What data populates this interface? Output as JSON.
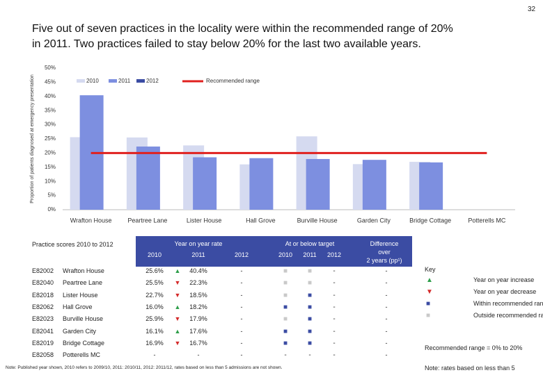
{
  "page_number": "32",
  "title": [
    "Five out of seven practices in the locality were within the recommended range of 20%",
    "in 2011.  Two practices failed to stay below 20% for the last two available years."
  ],
  "chart_data": {
    "type": "bar",
    "ylabel": "Proportion of patients diagnosed at emergency presentation",
    "categories": [
      "Wrafton House",
      "Peartree Lane",
      "Lister House",
      "Hall Grove",
      "Burville House",
      "Garden City",
      "Bridge Cottage",
      "Potterells MC"
    ],
    "series": [
      {
        "name": "2010",
        "color": "#d5daf0",
        "values": [
          25.6,
          25.5,
          22.7,
          16.0,
          25.9,
          16.1,
          16.9,
          null
        ]
      },
      {
        "name": "2011",
        "color": "#7d8fe0",
        "values": [
          40.4,
          22.3,
          18.5,
          18.2,
          17.9,
          17.6,
          16.7,
          null
        ]
      },
      {
        "name": "2012",
        "color": "#3b4ca3",
        "values": [
          null,
          null,
          null,
          null,
          null,
          null,
          null,
          null
        ]
      }
    ],
    "reference_line": {
      "name": "Recommended range",
      "value": 20,
      "color": "#e0201e"
    },
    "ylim": [
      0,
      50
    ],
    "yticks": [
      {
        "value": 0,
        "label": "0%"
      },
      {
        "value": 5,
        "label": "5%"
      },
      {
        "value": 10,
        "label": "10%"
      },
      {
        "value": 15,
        "label": "15%"
      },
      {
        "value": 20,
        "label": "20%"
      },
      {
        "value": 25,
        "label": "25%"
      },
      {
        "value": 30,
        "label": "30%"
      },
      {
        "value": 35,
        "label": "35%"
      },
      {
        "value": 40,
        "label": "40%"
      },
      {
        "value": 45,
        "label": "45%"
      },
      {
        "value": 50,
        "label": "50%"
      }
    ]
  },
  "table": {
    "caption": "Practice scores 2010 to 2012",
    "group_headers": [
      "Year on year rate",
      "At or below target"
    ],
    "rate_years": [
      "2010",
      "2011",
      "2012"
    ],
    "target_years": [
      "2010",
      "2011",
      "2012"
    ],
    "difference_header": [
      "Difference",
      "over",
      "2 years (pp¹)"
    ],
    "rows": [
      {
        "code": "E82002",
        "name": "Wrafton House",
        "y2010": "25.6%",
        "trend": {
          "text": "▲",
          "color": "#2e9e4a"
        },
        "y2011": "40.4%",
        "y2012": "-",
        "target": [
          {
            "text": "■",
            "color": "#c9c9c9"
          },
          {
            "text": "■",
            "color": "#c9c9c9"
          },
          {
            "text": "-",
            "color": "#333333"
          }
        ],
        "difference": "-"
      },
      {
        "code": "E82040",
        "name": "Peartree Lane",
        "y2010": "25.5%",
        "trend": {
          "text": "▼",
          "color": "#d42a2a"
        },
        "y2011": "22.3%",
        "y2012": "-",
        "target": [
          {
            "text": "■",
            "color": "#c9c9c9"
          },
          {
            "text": "■",
            "color": "#c9c9c9"
          },
          {
            "text": "-",
            "color": "#333333"
          }
        ],
        "difference": "-"
      },
      {
        "code": "E82018",
        "name": "Lister House",
        "y2010": "22.7%",
        "trend": {
          "text": "▼",
          "color": "#d42a2a"
        },
        "y2011": "18.5%",
        "y2012": "-",
        "target": [
          {
            "text": "■",
            "color": "#c9c9c9"
          },
          {
            "text": "■",
            "color": "#3b4ca3"
          },
          {
            "text": "-",
            "color": "#333333"
          }
        ],
        "difference": "-"
      },
      {
        "code": "E82062",
        "name": "Hall Grove",
        "y2010": "16.0%",
        "trend": {
          "text": "▲",
          "color": "#2e9e4a"
        },
        "y2011": "18.2%",
        "y2012": "-",
        "target": [
          {
            "text": "■",
            "color": "#3b4ca3"
          },
          {
            "text": "■",
            "color": "#3b4ca3"
          },
          {
            "text": "-",
            "color": "#333333"
          }
        ],
        "difference": "-"
      },
      {
        "code": "E82023",
        "name": "Burville House",
        "y2010": "25.9%",
        "trend": {
          "text": "▼",
          "color": "#d42a2a"
        },
        "y2011": "17.9%",
        "y2012": "-",
        "target": [
          {
            "text": "■",
            "color": "#c9c9c9"
          },
          {
            "text": "■",
            "color": "#3b4ca3"
          },
          {
            "text": "-",
            "color": "#333333"
          }
        ],
        "difference": "-"
      },
      {
        "code": "E82041",
        "name": "Garden City",
        "y2010": "16.1%",
        "trend": {
          "text": "▲",
          "color": "#2e9e4a"
        },
        "y2011": "17.6%",
        "y2012": "-",
        "target": [
          {
            "text": "■",
            "color": "#3b4ca3"
          },
          {
            "text": "■",
            "color": "#3b4ca3"
          },
          {
            "text": "-",
            "color": "#333333"
          }
        ],
        "difference": "-"
      },
      {
        "code": "E82019",
        "name": "Bridge Cottage",
        "y2010": "16.9%",
        "trend": {
          "text": "▼",
          "color": "#d42a2a"
        },
        "y2011": "16.7%",
        "y2012": "-",
        "target": [
          {
            "text": "■",
            "color": "#3b4ca3"
          },
          {
            "text": "■",
            "color": "#3b4ca3"
          },
          {
            "text": "-",
            "color": "#333333"
          }
        ],
        "difference": "-"
      },
      {
        "code": "E82058",
        "name": "Potterells MC",
        "y2010": "-",
        "trend": null,
        "y2011": "-",
        "y2012": "-",
        "target": [
          {
            "text": "-",
            "color": "#333333"
          },
          {
            "text": "-",
            "color": "#333333"
          },
          {
            "text": "-",
            "color": "#333333"
          }
        ],
        "difference": "-"
      }
    ]
  },
  "key": {
    "title": "Key",
    "items": [
      {
        "symbol": "▲",
        "color": "#2e9e4a",
        "text": "Year on year increase"
      },
      {
        "symbol": "▼",
        "color": "#d42a2a",
        "text": "Year on year decrease"
      },
      {
        "symbol": "■",
        "color": "#3b4ca3",
        "text": "Within recommended range"
      },
      {
        "symbol": "■",
        "color": "#c9c9c9",
        "text": "Outside recommended range"
      }
    ],
    "range_note": "Recommended range  = 0% to 20%"
  },
  "footnote": "Note: Published year shown, 2010 refers to 2009/10, 2011: 2010/11, 2012: 2011/12, rates based on less than 5 admissions are not shown.",
  "side_note": "Note: rates based on less than 5"
}
